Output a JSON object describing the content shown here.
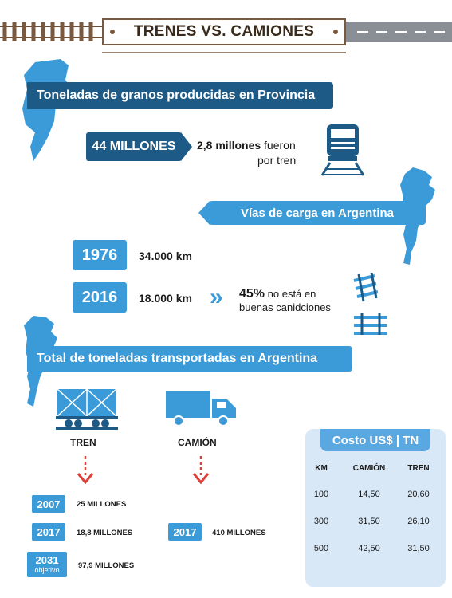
{
  "header": {
    "title": "TRENES VS. CAMIONES"
  },
  "section1": {
    "heading": "Toneladas de granos producidas en Provincia",
    "total": "44 MILLONES",
    "note_strong": "2,8 millones",
    "note_rest_1": " fueron",
    "note_rest_2": "por tren"
  },
  "section2": {
    "heading": "Vías de carga en Argentina",
    "rows": [
      {
        "year": "1976",
        "km": "34.000 km"
      },
      {
        "year": "2016",
        "km": "18.000 km"
      }
    ],
    "arrows": "»",
    "pct": "45%",
    "pct_text_1": " no está en",
    "pct_text_2": "buenas canidciones"
  },
  "section3": {
    "heading": "Total de toneladas transportadas en Argentina",
    "tren_label": "TREN",
    "camion_label": "CAMIÓN",
    "tren_rows": [
      {
        "year": "2007",
        "value": "25 MILLONES"
      },
      {
        "year": "2017",
        "value": "18,8 MILLONES"
      },
      {
        "year": "2031",
        "sub": "objetivo",
        "value": "97,9 MILLONES"
      }
    ],
    "camion_rows": [
      {
        "year": "2017",
        "value": "410 MILLONES"
      }
    ]
  },
  "cost": {
    "title": "Costo US$ | TN",
    "headers": [
      "KM",
      "CAMIÓN",
      "TREN"
    ],
    "rows": [
      [
        "100",
        "14,50",
        "20,60"
      ],
      [
        "300",
        "31,50",
        "26,10"
      ],
      [
        "500",
        "42,50",
        "31,50"
      ]
    ]
  },
  "colors": {
    "dark_blue": "#1e5a86",
    "light_blue": "#3b9ad8",
    "brown": "#7a5a3e",
    "red": "#e0403a"
  }
}
